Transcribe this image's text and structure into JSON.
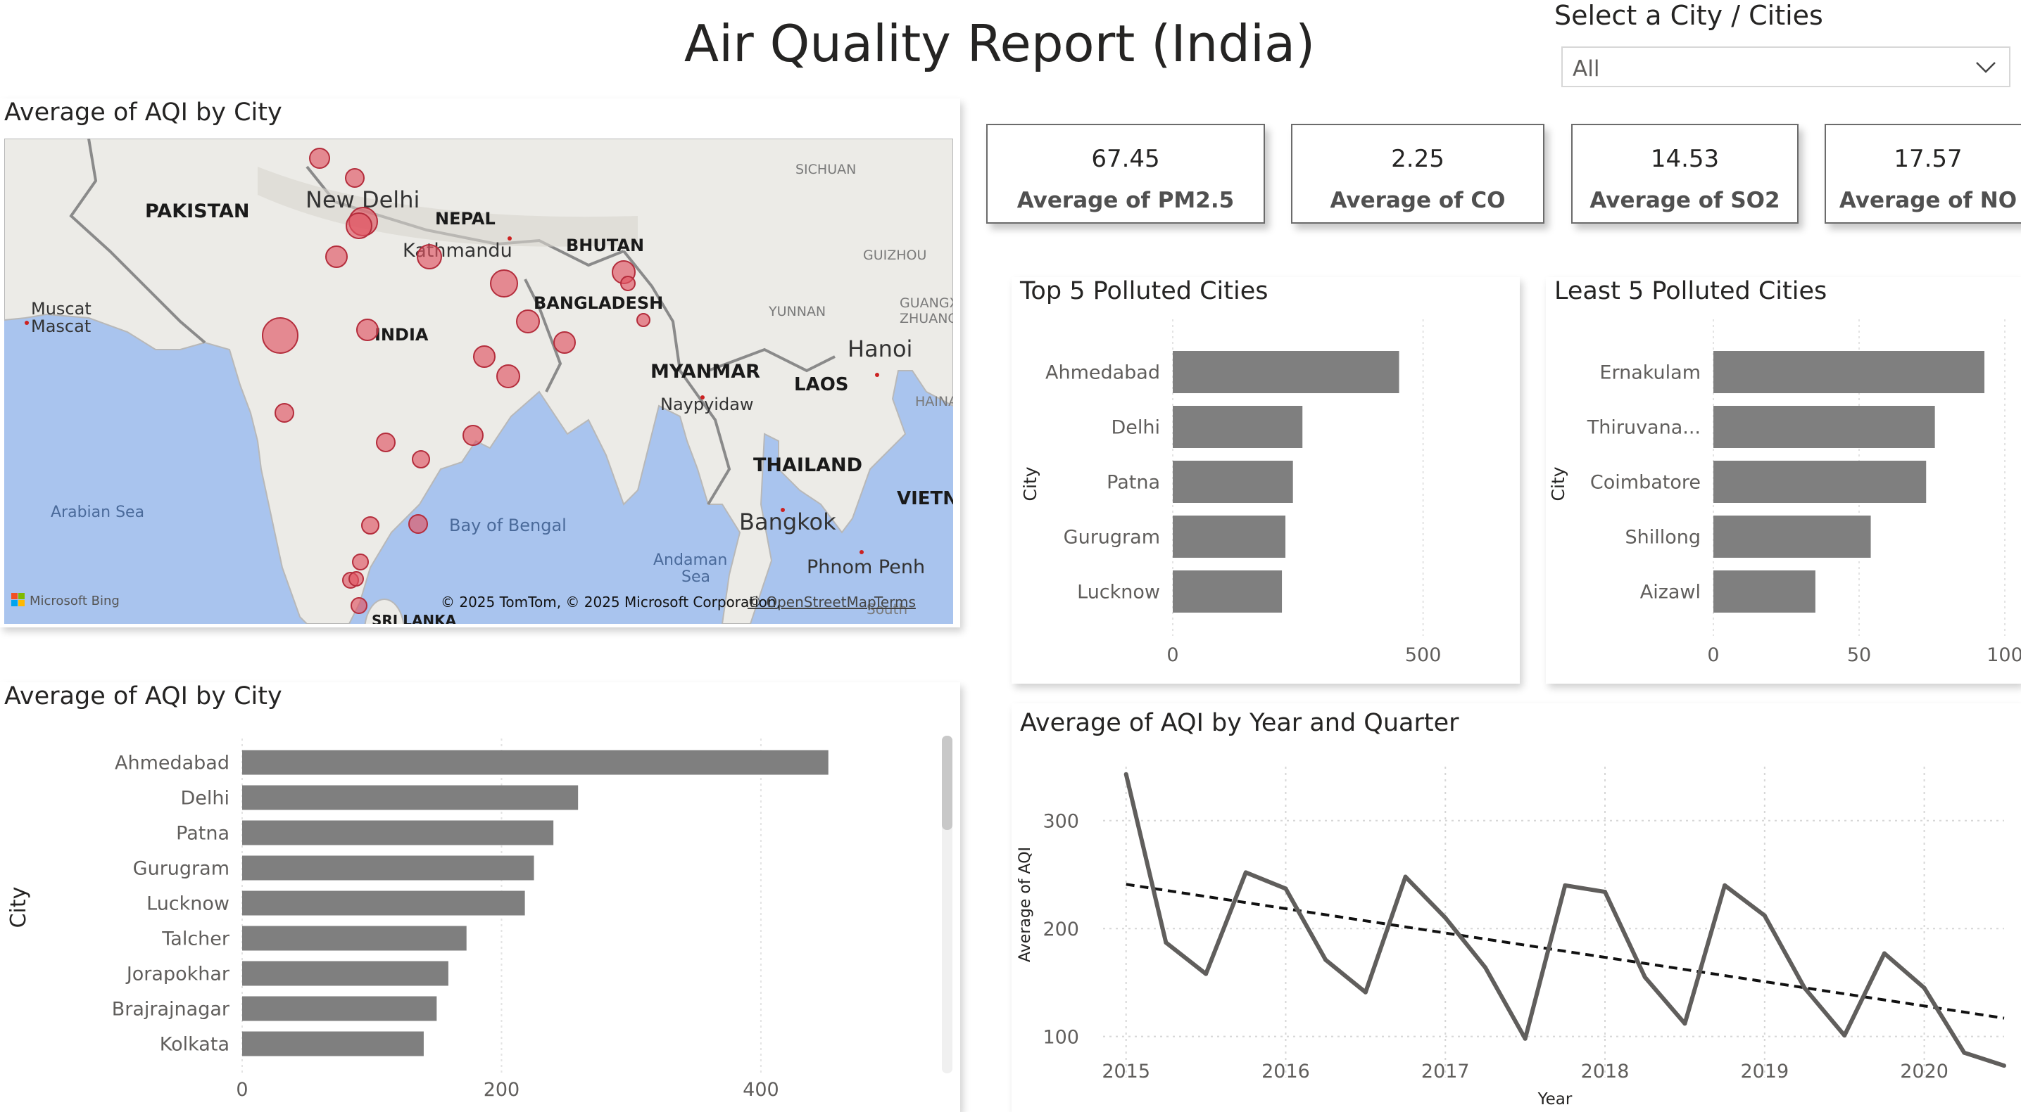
{
  "header": {
    "title": "Air Quality Report (India)",
    "slicer_label": "Select a City / Cities",
    "slicer_value": "All"
  },
  "cards": [
    {
      "value": "67.45",
      "label": "Average of PM2.5"
    },
    {
      "value": "2.25",
      "label": "Average of CO"
    },
    {
      "value": "14.53",
      "label": "Average of SO2"
    },
    {
      "value": "17.57",
      "label": "Average of NO"
    }
  ],
  "map": {
    "title": "Average of AQI by City",
    "labels": {
      "pakistan": "PAKISTAN",
      "new_delhi": "New Delhi",
      "nepal": "NEPAL",
      "kathmandu": "Kathmandu",
      "bhutan": "BHUTAN",
      "bangladesh": "BANGLADESH",
      "india": "INDIA",
      "muscat": "Muscat",
      "mascat": "Mascat",
      "myanmar": "MYANMAR",
      "naypyidaw": "Naypyidaw",
      "laos": "LAOS",
      "thailand": "THAILAND",
      "bangkok": "Bangkok",
      "hanoi": "Hanoi",
      "phnom_penh": "Phnom Penh",
      "vietnam": "VIETNA",
      "sichuan": "SICHUAN",
      "guizhou": "GUIZHOU",
      "yunnan": "YUNNAN",
      "guangxi": "GUANGX",
      "zhuang": "ZHUANG",
      "hainan": "HAINA",
      "arabian_sea": "Arabian Sea",
      "bay_of_bengal": "Bay of Bengal",
      "andaman": "Andaman",
      "andaman_sea": "Sea",
      "sri_lanka": "SRI LANKA",
      "south": "South"
    },
    "attribution": "© 2025 TomTom, © 2025 Microsoft Corporation,",
    "attribution_link": "© OpenStreetMap",
    "terms": "Terms",
    "bing": "Microsoft Bing",
    "bubble_color": "#e05563"
  },
  "chart_data": [
    {
      "id": "aqi_by_city",
      "type": "bar",
      "orientation": "horizontal",
      "title": "Average of AQI by City",
      "ylabel": "City",
      "categories": [
        "Ahmedabad",
        "Delhi",
        "Patna",
        "Gurugram",
        "Lucknow",
        "Talcher",
        "Jorapokhar",
        "Brajrajnagar",
        "Kolkata"
      ],
      "values": [
        452,
        259,
        240,
        225,
        218,
        173,
        159,
        150,
        140
      ],
      "xlim": [
        0,
        520
      ],
      "xticks": [
        0,
        200,
        400
      ],
      "color": "#7f7f7f"
    },
    {
      "id": "top5",
      "type": "bar",
      "orientation": "horizontal",
      "title": "Top 5 Polluted Cities",
      "ylabel": "City",
      "categories": [
        "Ahmedabad",
        "Delhi",
        "Patna",
        "Gurugram",
        "Lucknow"
      ],
      "values": [
        452,
        259,
        240,
        225,
        218
      ],
      "xlim": [
        0,
        620
      ],
      "xticks": [
        0,
        500
      ],
      "color": "#7f7f7f"
    },
    {
      "id": "least5",
      "type": "bar",
      "orientation": "horizontal",
      "title": "Least 5 Polluted Cities",
      "ylabel": "City",
      "categories": [
        "Ernakulam",
        "Thiruvana...",
        "Coimbatore",
        "Shillong",
        "Aizawl"
      ],
      "values": [
        93,
        76,
        73,
        54,
        35
      ],
      "xlim": [
        0,
        100
      ],
      "xticks": [
        0,
        50,
        100
      ],
      "color": "#7f7f7f"
    },
    {
      "id": "aqi_trend",
      "type": "line",
      "title": "Average of AQI by Year and Quarter",
      "xlabel": "Year",
      "ylabel": "Average of AQI",
      "x": [
        2015.0,
        2015.25,
        2015.5,
        2015.75,
        2016.0,
        2016.25,
        2016.5,
        2016.75,
        2017.0,
        2017.25,
        2017.5,
        2017.75,
        2018.0,
        2018.25,
        2018.5,
        2018.75,
        2019.0,
        2019.25,
        2019.5,
        2019.75,
        2020.0,
        2020.25,
        2020.5
      ],
      "y": [
        343,
        187,
        158,
        252,
        237,
        171,
        141,
        248,
        210,
        164,
        98,
        240,
        234,
        155,
        112,
        240,
        212,
        145,
        101,
        177,
        145,
        85,
        73
      ],
      "trend": {
        "x": [
          2015.0,
          2020.5
        ],
        "y": [
          241,
          117
        ]
      },
      "xlim": [
        2014.9,
        2020.5
      ],
      "ylim": [
        62,
        350
      ],
      "xticks": [
        2015,
        2016,
        2017,
        2018,
        2019,
        2020
      ],
      "yticks": [
        100,
        200,
        300
      ],
      "color": "#605e5c"
    }
  ]
}
